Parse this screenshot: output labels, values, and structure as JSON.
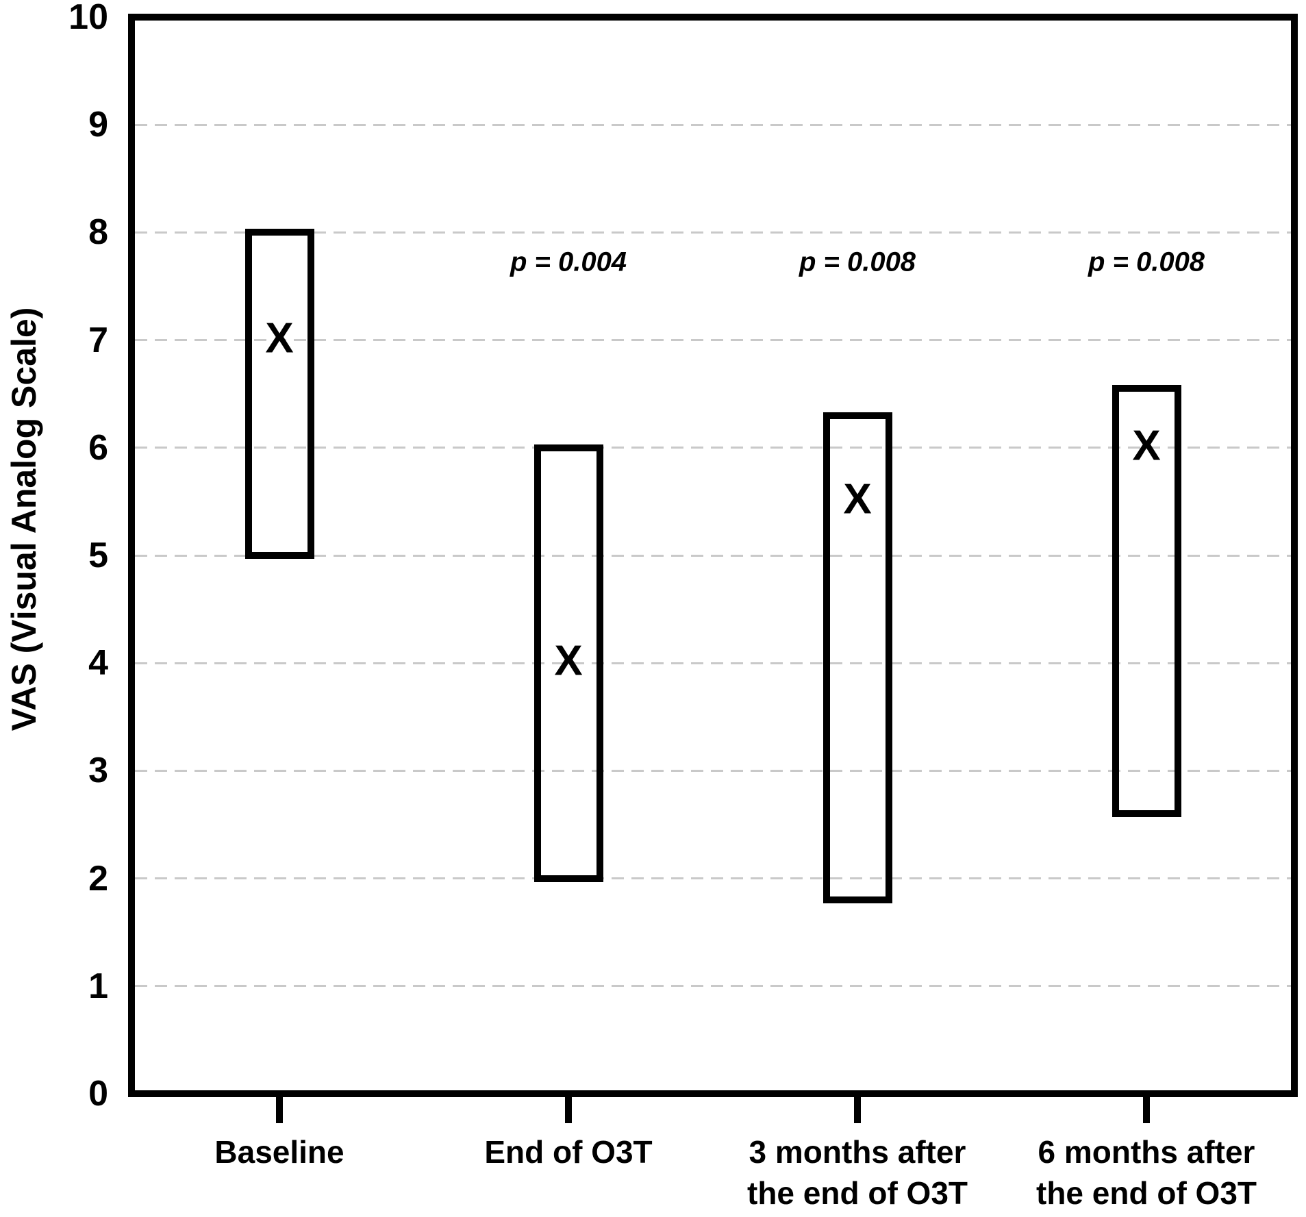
{
  "chart_data": {
    "type": "box-range",
    "title": "",
    "ylabel": "VAS (Visual Analog Scale)",
    "xlabel": "",
    "ylim": [
      0,
      10
    ],
    "yticks": [
      0,
      1,
      2,
      3,
      4,
      5,
      6,
      7,
      8,
      9,
      10
    ],
    "grid": "horizontal-dashed-gridlines-at-1-to-9",
    "legend": "none",
    "marker_glyph": "X",
    "categories": [
      "Baseline",
      "End of O3T",
      "3 months after\nthe end of O3T",
      "6 months after\nthe end of O3T"
    ],
    "series": [
      {
        "category": "Baseline",
        "box_low": 5,
        "box_high": 8,
        "marker": 7,
        "p_label": null
      },
      {
        "category": "End of O3T",
        "box_low": 2,
        "box_high": 6,
        "marker": 4,
        "p_label": "p = 0.004"
      },
      {
        "category": "3 months after\nthe end of O3T",
        "box_low": 1.8,
        "box_high": 6.3,
        "marker": 5.5,
        "p_label": "p = 0.008"
      },
      {
        "category": "6 months after\nthe end of O3T",
        "box_low": 2.6,
        "box_high": 6.55,
        "marker": 6,
        "p_label": "p = 0.008"
      }
    ],
    "colors": {
      "stroke": "#000000",
      "gridline": "#c9c9c9",
      "background": "#ffffff",
      "text": "#000000"
    }
  }
}
